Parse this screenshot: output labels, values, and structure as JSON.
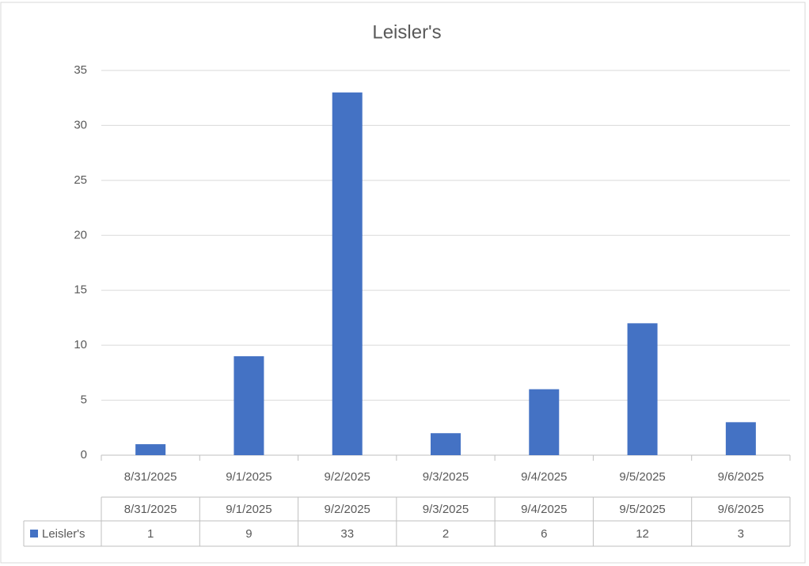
{
  "chart_data": {
    "type": "bar",
    "title": "Leisler's",
    "categories": [
      "8/31/2025",
      "9/1/2025",
      "9/2/2025",
      "9/3/2025",
      "9/4/2025",
      "9/5/2025",
      "9/6/2025"
    ],
    "series": [
      {
        "name": "Leisler's",
        "color": "#4472c4",
        "values": [
          1,
          9,
          33,
          2,
          6,
          12,
          3
        ]
      }
    ],
    "ylim": [
      0,
      35
    ],
    "yticks": [
      0,
      5,
      10,
      15,
      20,
      25,
      30,
      35
    ],
    "grid": true
  }
}
